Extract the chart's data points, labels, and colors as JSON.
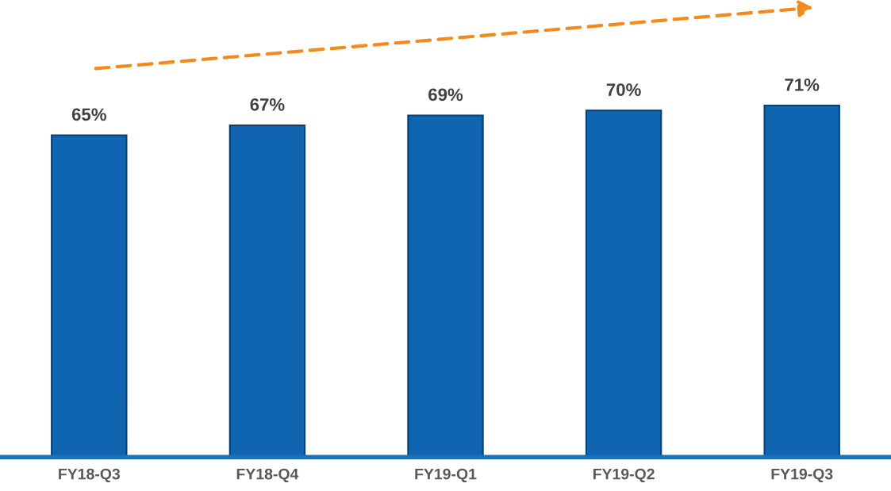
{
  "chart_data": {
    "type": "bar",
    "categories": [
      "FY18-Q3",
      "FY18-Q4",
      "FY19-Q1",
      "FY19-Q2",
      "FY19-Q3"
    ],
    "values": [
      65,
      67,
      69,
      70,
      71
    ],
    "value_labels": [
      "65%",
      "67%",
      "69%",
      "70%",
      "71%"
    ],
    "color": "#1065b0",
    "tick_labels": "x"
  }
}
